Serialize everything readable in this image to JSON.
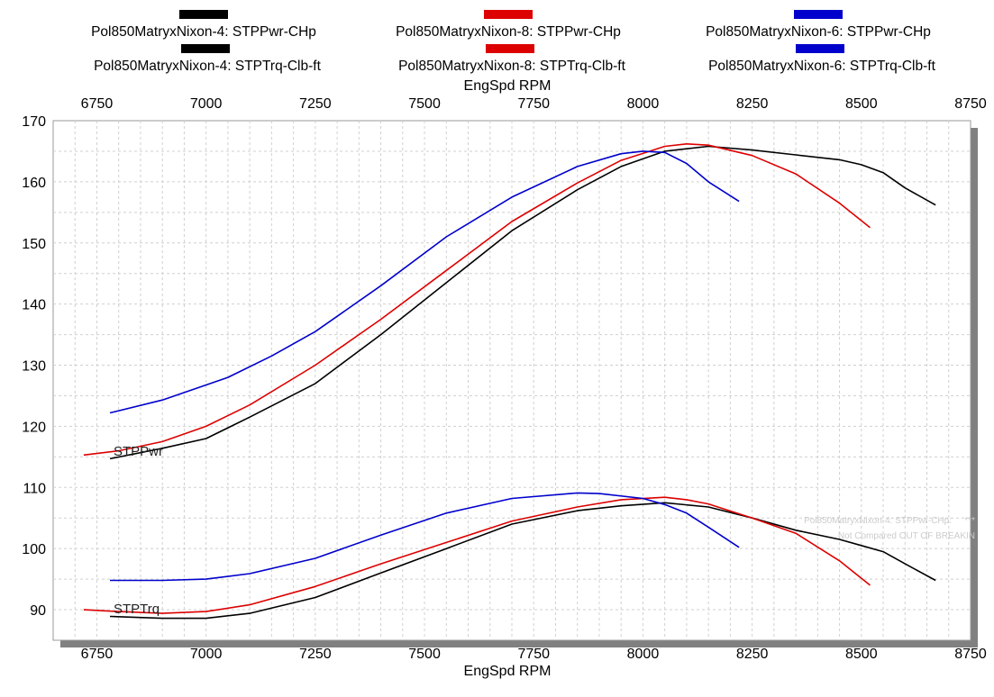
{
  "chart_data": {
    "type": "line",
    "xlabel": "EngSpd RPM",
    "xlim": [
      6650,
      8750
    ],
    "ylim": [
      85,
      170
    ],
    "x_ticks": [
      6750,
      7000,
      7250,
      7500,
      7750,
      8000,
      8250,
      8500,
      8750
    ],
    "y_ticks": [
      90,
      100,
      110,
      120,
      130,
      140,
      150,
      160,
      170
    ],
    "grid": true,
    "legend_position": "top",
    "series_labels": {
      "pwr": "STPPwr",
      "trq": "STPTrq"
    },
    "annotation": {
      "line1": "Pol850MatryxNixon-4: STPPwr-CHp:",
      "line1_suffix": "***",
      "line2": "Not Compared OUT OF BREAKIN"
    },
    "series": [
      {
        "name": "Pol850MatryxNixon-4: STPPwr-CHp",
        "color": "#000000",
        "group": "pwr",
        "x": [
          6780,
          6900,
          7000,
          7100,
          7250,
          7400,
          7550,
          7700,
          7850,
          7950,
          8050,
          8150,
          8250,
          8350,
          8450,
          8500,
          8550,
          8600,
          8670
        ],
        "y": [
          114.7,
          116.4,
          118.0,
          121.5,
          127.0,
          135.0,
          143.5,
          152.0,
          158.7,
          162.5,
          165.0,
          165.8,
          165.2,
          164.4,
          163.6,
          162.8,
          161.5,
          159.0,
          156.2
        ]
      },
      {
        "name": "Pol850MatryxNixon-4: STPTrq-Clb-ft",
        "color": "#000000",
        "group": "trq",
        "x": [
          6780,
          6900,
          7000,
          7100,
          7250,
          7400,
          7550,
          7700,
          7850,
          7950,
          8050,
          8150,
          8250,
          8350,
          8450,
          8500,
          8550,
          8600,
          8670
        ],
        "y": [
          88.9,
          88.6,
          88.6,
          89.4,
          92.0,
          96.0,
          100.0,
          104.0,
          106.2,
          107.0,
          107.5,
          106.8,
          105.0,
          103.0,
          101.5,
          100.5,
          99.5,
          97.5,
          94.8
        ]
      },
      {
        "name": "Pol850MatryxNixon-8: STPPwr-CHp",
        "color": "#dd0000",
        "group": "pwr",
        "x": [
          6720,
          6800,
          6900,
          7000,
          7100,
          7250,
          7400,
          7550,
          7700,
          7850,
          7950,
          8050,
          8100,
          8150,
          8250,
          8350,
          8450,
          8520
        ],
        "y": [
          115.3,
          116.0,
          117.5,
          120.0,
          123.5,
          130.0,
          137.5,
          145.5,
          153.5,
          159.8,
          163.5,
          165.8,
          166.2,
          166.0,
          164.3,
          161.3,
          156.5,
          152.5
        ]
      },
      {
        "name": "Pol850MatryxNixon-8: STPTrq-Clb-ft",
        "color": "#dd0000",
        "group": "trq",
        "x": [
          6720,
          6800,
          6900,
          7000,
          7100,
          7250,
          7400,
          7550,
          7700,
          7850,
          7950,
          8050,
          8100,
          8150,
          8250,
          8350,
          8450,
          8520
        ],
        "y": [
          90.0,
          89.7,
          89.4,
          89.7,
          90.8,
          93.8,
          97.5,
          101.0,
          104.5,
          106.8,
          108.0,
          108.4,
          108.0,
          107.3,
          105.0,
          102.5,
          98.0,
          94.0
        ]
      },
      {
        "name": "Pol850MatryxNixon-6: STPPwr-CHp",
        "color": "#0000cc",
        "group": "pwr",
        "x": [
          6780,
          6900,
          7050,
          7150,
          7250,
          7400,
          7550,
          7700,
          7850,
          7950,
          8000,
          8050,
          8100,
          8150,
          8220
        ],
        "y": [
          122.2,
          124.3,
          128.0,
          131.5,
          135.5,
          143.0,
          151.0,
          157.5,
          162.5,
          164.6,
          165.0,
          164.8,
          163.0,
          160.0,
          156.8
        ]
      },
      {
        "name": "Pol850MatryxNixon-6: STPTrq-Clb-ft",
        "color": "#0000cc",
        "group": "trq",
        "x": [
          6780,
          6900,
          7000,
          7100,
          7250,
          7400,
          7550,
          7700,
          7850,
          7900,
          8000,
          8050,
          8100,
          8150,
          8220
        ],
        "y": [
          94.8,
          94.8,
          95.0,
          95.9,
          98.4,
          102.2,
          105.8,
          108.2,
          109.1,
          109.0,
          108.2,
          107.2,
          105.8,
          103.5,
          100.2
        ]
      }
    ]
  }
}
